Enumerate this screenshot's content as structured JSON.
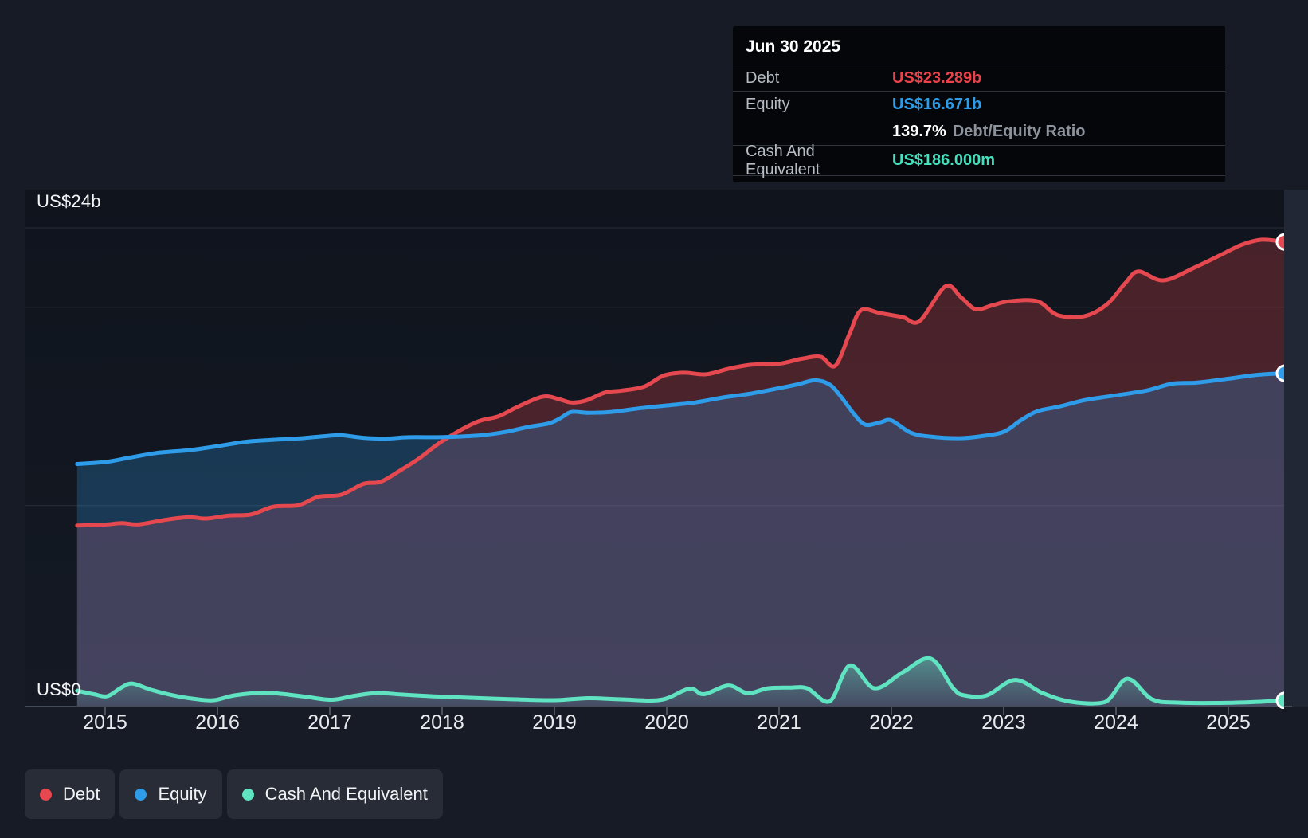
{
  "tooltip": {
    "date": "Jun 30 2025",
    "debt_label": "Debt",
    "debt_value": "US$23.289b",
    "equity_label": "Equity",
    "equity_value": "US$16.671b",
    "ratio_value": "139.7%",
    "ratio_label": "Debt/Equity Ratio",
    "cash_label": "Cash And Equivalent",
    "cash_value": "US$186.000m"
  },
  "axes": {
    "y": {
      "top_label": "US$24b",
      "bottom_label": "US$0"
    },
    "x": {
      "labels": [
        "2015",
        "2016",
        "2017",
        "2018",
        "2019",
        "2020",
        "2021",
        "2022",
        "2023",
        "2024",
        "2025"
      ]
    }
  },
  "legend": [
    {
      "label": "Debt",
      "color": "#e5484e"
    },
    {
      "label": "Equity",
      "color": "#2e9ce8"
    },
    {
      "label": "Cash And Equivalent",
      "color": "#5fe3c1"
    }
  ],
  "colors": {
    "debt_value_text": "#e8434a",
    "equity_value_text": "#2d9ce8",
    "cash_value_text": "#43e1bd"
  },
  "chart_data": {
    "type": "area",
    "title": "Debt to Equity history",
    "y_unit": "US$ billions",
    "x_unit": "year",
    "x_range": [
      2014.75,
      2025.5
    ],
    "ylim": [
      0,
      24
    ],
    "gridline_values": [
      24,
      20,
      10
    ],
    "legend_position": "bottom-left",
    "last_point_date": "Jun 30 2025",
    "series": [
      {
        "name": "Debt",
        "color": "#e5484e",
        "fill_opacity": 0.27,
        "points": [
          [
            2014.75,
            9.0
          ],
          [
            2015,
            9.05
          ],
          [
            2015.15,
            9.12
          ],
          [
            2015.3,
            9.06
          ],
          [
            2015.55,
            9.3
          ],
          [
            2015.75,
            9.42
          ],
          [
            2015.9,
            9.35
          ],
          [
            2016.1,
            9.5
          ],
          [
            2016.3,
            9.56
          ],
          [
            2016.5,
            9.95
          ],
          [
            2016.72,
            10.02
          ],
          [
            2016.9,
            10.45
          ],
          [
            2017.1,
            10.55
          ],
          [
            2017.3,
            11.1
          ],
          [
            2017.45,
            11.2
          ],
          [
            2017.62,
            11.75
          ],
          [
            2017.8,
            12.4
          ],
          [
            2018,
            13.25
          ],
          [
            2018.3,
            14.2
          ],
          [
            2018.5,
            14.5
          ],
          [
            2018.68,
            15.0
          ],
          [
            2018.9,
            15.5
          ],
          [
            2019.05,
            15.35
          ],
          [
            2019.15,
            15.2
          ],
          [
            2019.28,
            15.3
          ],
          [
            2019.45,
            15.7
          ],
          [
            2019.6,
            15.8
          ],
          [
            2019.8,
            16.0
          ],
          [
            2019.97,
            16.55
          ],
          [
            2020.15,
            16.7
          ],
          [
            2020.35,
            16.62
          ],
          [
            2020.55,
            16.9
          ],
          [
            2020.75,
            17.1
          ],
          [
            2021,
            17.15
          ],
          [
            2021.2,
            17.4
          ],
          [
            2021.37,
            17.5
          ],
          [
            2021.5,
            17.05
          ],
          [
            2021.63,
            18.7
          ],
          [
            2021.73,
            19.85
          ],
          [
            2021.9,
            19.7
          ],
          [
            2022.1,
            19.5
          ],
          [
            2022.25,
            19.3
          ],
          [
            2022.48,
            21.05
          ],
          [
            2022.62,
            20.5
          ],
          [
            2022.75,
            19.9
          ],
          [
            2022.9,
            20.1
          ],
          [
            2023.05,
            20.3
          ],
          [
            2023.3,
            20.3
          ],
          [
            2023.48,
            19.6
          ],
          [
            2023.72,
            19.55
          ],
          [
            2023.92,
            20.15
          ],
          [
            2024.08,
            21.2
          ],
          [
            2024.2,
            21.8
          ],
          [
            2024.42,
            21.35
          ],
          [
            2024.7,
            22.0
          ],
          [
            2024.92,
            22.6
          ],
          [
            2025.12,
            23.15
          ],
          [
            2025.3,
            23.4
          ],
          [
            2025.5,
            23.289
          ]
        ]
      },
      {
        "name": "Equity",
        "color": "#2e9ce8",
        "fill_opacity": 0.26,
        "points": [
          [
            2014.75,
            12.1
          ],
          [
            2015,
            12.2
          ],
          [
            2015.2,
            12.4
          ],
          [
            2015.45,
            12.65
          ],
          [
            2015.75,
            12.8
          ],
          [
            2016,
            13.0
          ],
          [
            2016.25,
            13.22
          ],
          [
            2016.5,
            13.32
          ],
          [
            2016.75,
            13.4
          ],
          [
            2016.95,
            13.5
          ],
          [
            2017.1,
            13.55
          ],
          [
            2017.3,
            13.42
          ],
          [
            2017.5,
            13.38
          ],
          [
            2017.7,
            13.45
          ],
          [
            2017.95,
            13.45
          ],
          [
            2018.15,
            13.48
          ],
          [
            2018.35,
            13.55
          ],
          [
            2018.55,
            13.7
          ],
          [
            2018.75,
            13.95
          ],
          [
            2018.95,
            14.15
          ],
          [
            2019.05,
            14.4
          ],
          [
            2019.15,
            14.72
          ],
          [
            2019.3,
            14.68
          ],
          [
            2019.5,
            14.72
          ],
          [
            2019.75,
            14.9
          ],
          [
            2020,
            15.05
          ],
          [
            2020.25,
            15.2
          ],
          [
            2020.5,
            15.45
          ],
          [
            2020.75,
            15.65
          ],
          [
            2021,
            15.92
          ],
          [
            2021.17,
            16.12
          ],
          [
            2021.32,
            16.32
          ],
          [
            2021.45,
            16.1
          ],
          [
            2021.55,
            15.5
          ],
          [
            2021.67,
            14.6
          ],
          [
            2021.77,
            14.08
          ],
          [
            2021.9,
            14.2
          ],
          [
            2022,
            14.3
          ],
          [
            2022.17,
            13.68
          ],
          [
            2022.35,
            13.48
          ],
          [
            2022.6,
            13.4
          ],
          [
            2022.8,
            13.5
          ],
          [
            2023,
            13.72
          ],
          [
            2023.15,
            14.3
          ],
          [
            2023.3,
            14.76
          ],
          [
            2023.5,
            15.0
          ],
          [
            2023.72,
            15.32
          ],
          [
            2023.95,
            15.52
          ],
          [
            2024.27,
            15.8
          ],
          [
            2024.5,
            16.15
          ],
          [
            2024.72,
            16.2
          ],
          [
            2025,
            16.4
          ],
          [
            2025.27,
            16.6
          ],
          [
            2025.5,
            16.671
          ]
        ]
      },
      {
        "name": "Cash And Equivalent",
        "color": "#5fe3c1",
        "fill_opacity": 0.4,
        "points": [
          [
            2014.75,
            0.68
          ],
          [
            2014.9,
            0.5
          ],
          [
            2015.02,
            0.4
          ],
          [
            2015.14,
            0.82
          ],
          [
            2015.24,
            1.04
          ],
          [
            2015.4,
            0.74
          ],
          [
            2015.6,
            0.45
          ],
          [
            2015.8,
            0.26
          ],
          [
            2015.97,
            0.2
          ],
          [
            2016.15,
            0.44
          ],
          [
            2016.4,
            0.58
          ],
          [
            2016.6,
            0.5
          ],
          [
            2016.8,
            0.36
          ],
          [
            2017.02,
            0.22
          ],
          [
            2017.22,
            0.42
          ],
          [
            2017.42,
            0.56
          ],
          [
            2017.65,
            0.48
          ],
          [
            2017.9,
            0.4
          ],
          [
            2018.2,
            0.33
          ],
          [
            2018.6,
            0.25
          ],
          [
            2019,
            0.2
          ],
          [
            2019.3,
            0.3
          ],
          [
            2019.6,
            0.24
          ],
          [
            2019.95,
            0.22
          ],
          [
            2020.2,
            0.78
          ],
          [
            2020.33,
            0.5
          ],
          [
            2020.55,
            0.94
          ],
          [
            2020.72,
            0.55
          ],
          [
            2020.9,
            0.8
          ],
          [
            2021.1,
            0.83
          ],
          [
            2021.25,
            0.8
          ],
          [
            2021.45,
            0.14
          ],
          [
            2021.63,
            1.95
          ],
          [
            2021.85,
            0.8
          ],
          [
            2022.1,
            1.6
          ],
          [
            2022.35,
            2.3
          ],
          [
            2022.55,
            0.8
          ],
          [
            2022.65,
            0.44
          ],
          [
            2022.85,
            0.44
          ],
          [
            2023.1,
            1.22
          ],
          [
            2023.35,
            0.55
          ],
          [
            2023.6,
            0.12
          ],
          [
            2023.9,
            0.1
          ],
          [
            2024.1,
            1.28
          ],
          [
            2024.32,
            0.25
          ],
          [
            2024.55,
            0.08
          ],
          [
            2024.9,
            0.06
          ],
          [
            2025.2,
            0.1
          ],
          [
            2025.5,
            0.186
          ]
        ]
      }
    ]
  }
}
